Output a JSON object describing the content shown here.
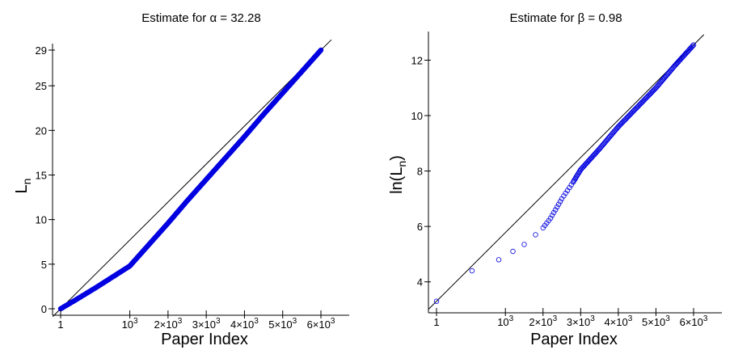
{
  "chart_data": [
    {
      "type": "scatter",
      "title": "Estimate for α = 32.28",
      "xlabel": "Paper Index",
      "ylabel": "L_n",
      "ylabel_main": "L",
      "ylabel_sub": "n",
      "x_scale": "log",
      "xlim": [
        1,
        6000
      ],
      "ylim": [
        0,
        29
      ],
      "x_ticks": [
        {
          "value": 1,
          "base": "1",
          "exp": ""
        },
        {
          "value": 1000,
          "base": "10",
          "exp": "3"
        },
        {
          "value": 2000,
          "base": "2×10",
          "exp": "3"
        },
        {
          "value": 3000,
          "base": "3×10",
          "exp": "3"
        },
        {
          "value": 4000,
          "base": "4×10",
          "exp": "3"
        },
        {
          "value": 5000,
          "base": "5×10",
          "exp": "3"
        },
        {
          "value": 6000,
          "base": "6×10",
          "exp": "3"
        }
      ],
      "y_ticks": [
        "0",
        "5",
        "10",
        "15",
        "20",
        "25",
        "29"
      ],
      "series": [
        {
          "color": "#0000e0",
          "marker": "filled-dot",
          "x": [
            1,
            200,
            500,
            1000,
            1500,
            2000,
            2500,
            3000,
            3500,
            4000,
            4500,
            5000,
            5500,
            6000
          ],
          "y": [
            0,
            1,
            2.4,
            4.8,
            7.2,
            9.6,
            12.1,
            14.5,
            16.9,
            19.3,
            21.8,
            24.2,
            26.6,
            29
          ]
        }
      ],
      "fit_line": {
        "color": "#000000",
        "x": [
          1,
          6000
        ],
        "y": [
          0,
          29
        ]
      }
    },
    {
      "type": "scatter",
      "title": "Estimate for β = 0.98",
      "xlabel": "Paper Index",
      "ylabel": "ln(L_n)",
      "ylabel_main": "ln(L",
      "ylabel_sub": "n",
      "ylabel_tail": ")",
      "x_scale": "log",
      "xlim": [
        1,
        6000
      ],
      "ylim": [
        3,
        12.8
      ],
      "x_ticks": [
        {
          "value": 1,
          "base": "1",
          "exp": ""
        },
        {
          "value": 1000,
          "base": "10",
          "exp": "3"
        },
        {
          "value": 2000,
          "base": "2×10",
          "exp": "3"
        },
        {
          "value": 3000,
          "base": "3×10",
          "exp": "3"
        },
        {
          "value": 4000,
          "base": "4×10",
          "exp": "3"
        },
        {
          "value": 5000,
          "base": "5×10",
          "exp": "3"
        },
        {
          "value": 6000,
          "base": "6×10",
          "exp": "3"
        }
      ],
      "y_ticks": [
        "4",
        "6",
        "8",
        "10",
        "12"
      ],
      "series": [
        {
          "color": "#0000e0",
          "marker": "open-circle",
          "x": [
            1,
            500,
            900,
            1200,
            1500,
            1800,
            2000,
            2200,
            2500,
            2800,
            3000,
            3500,
            4000,
            4500,
            5000,
            5500,
            6000
          ],
          "y": [
            3.3,
            4.4,
            4.8,
            5.1,
            5.35,
            5.7,
            5.95,
            6.3,
            7.0,
            7.6,
            8.05,
            8.8,
            9.6,
            10.3,
            11.0,
            11.8,
            12.55
          ]
        }
      ],
      "fit_line": {
        "color": "#000000",
        "x": [
          1,
          6000
        ],
        "y": [
          3.3,
          12.55
        ]
      }
    }
  ]
}
